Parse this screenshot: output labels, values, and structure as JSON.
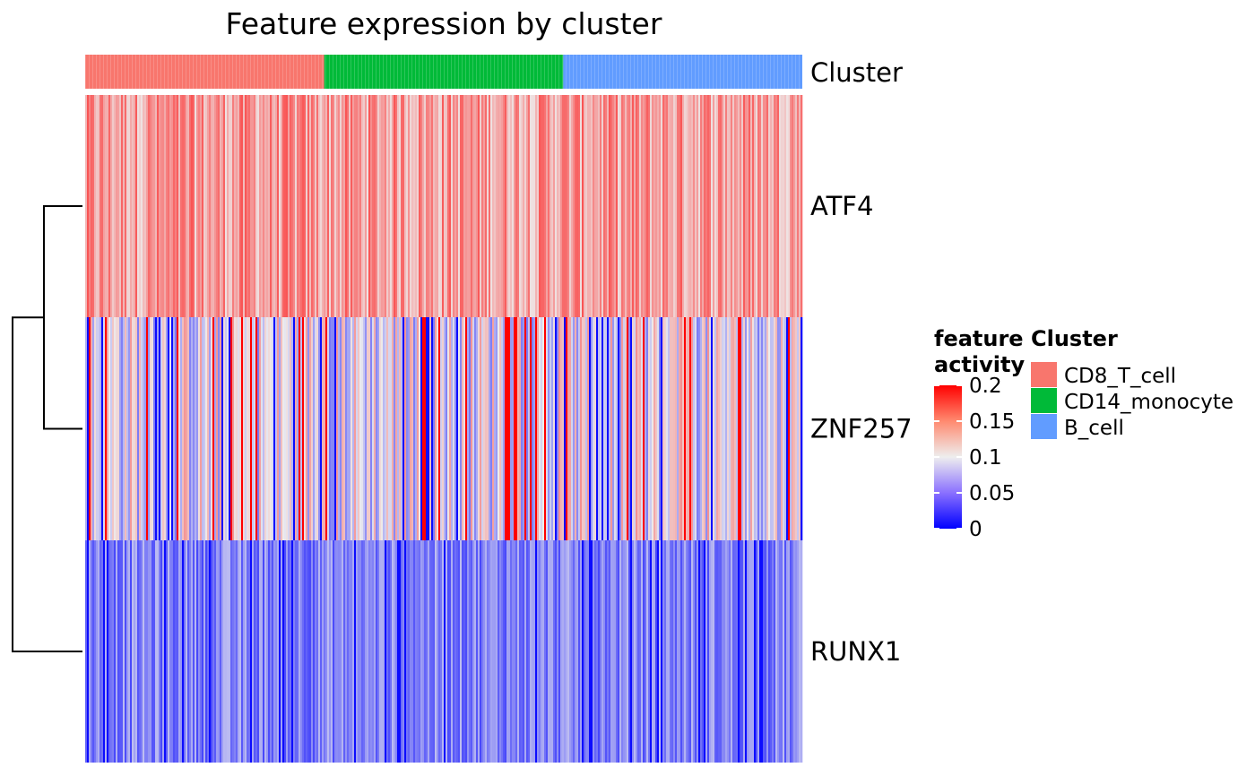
{
  "chart_data": {
    "type": "heatmap",
    "title": "Feature expression by cluster",
    "annotation_label": "Cluster",
    "rows": [
      "ATF4",
      "ZNF257",
      "RUNX1"
    ],
    "row_levels": [
      0.135,
      0.08,
      0.05
    ],
    "column_groups": [
      {
        "name": "CD8_T_cell",
        "color": "#F8766D"
      },
      {
        "name": "CD14_monocyte",
        "color": "#00BA38"
      },
      {
        "name": "B_cell",
        "color": "#619CFF"
      }
    ],
    "color_scale": {
      "min": 0,
      "mid": 0.1,
      "max": 0.2,
      "low_color": "#0000FF",
      "mid_color": "#EEEEEE",
      "high_color": "#FF0000"
    },
    "legend": {
      "title_line1": "feature",
      "title_line2": "activity",
      "ticks": [
        "0.2",
        "0.15",
        "0.1",
        "0.05",
        "0"
      ],
      "tick_values": [
        0.2,
        0.15,
        0.1,
        0.05,
        0
      ],
      "cluster_title": "Cluster"
    },
    "dendrogram": "left, rows ATF4 and ZNF257 joined first, then RUNX1"
  }
}
